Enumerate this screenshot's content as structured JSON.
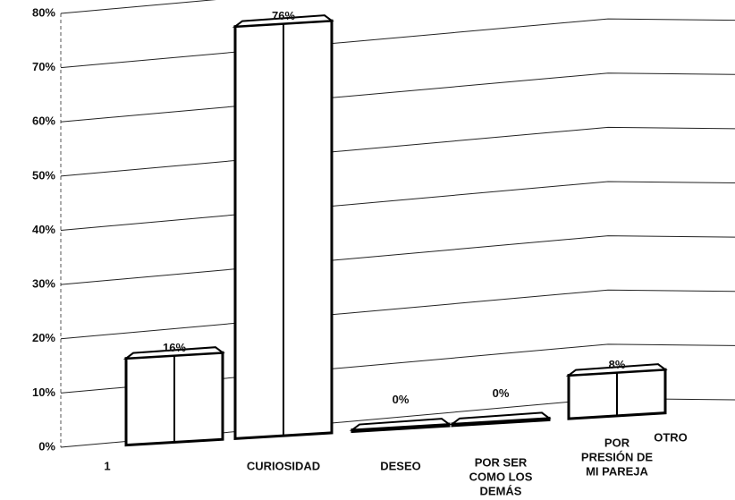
{
  "chart_data": {
    "type": "bar3d",
    "categories": [
      "1",
      "CURIOSIDAD",
      "DESEO",
      [
        "POR SER",
        "COMO LOS",
        "DEMÁS"
      ],
      [
        "POR",
        "PRESIÓN DE",
        "MI PAREJA"
      ],
      "OTRO"
    ],
    "values": [
      16,
      76,
      0,
      0,
      8,
      null
    ],
    "value_labels": [
      "16%",
      "76%",
      "0%",
      "0%",
      "8%",
      null
    ],
    "ylim": [
      0,
      80
    ],
    "yticks": [
      {
        "value": 0,
        "label": "0%"
      },
      {
        "value": 10,
        "label": "10%"
      },
      {
        "value": 20,
        "label": "20%"
      },
      {
        "value": 30,
        "label": "30%"
      },
      {
        "value": 40,
        "label": "40%"
      },
      {
        "value": 50,
        "label": "50%"
      },
      {
        "value": 60,
        "label": "60%"
      },
      {
        "value": 70,
        "label": "70%"
      },
      {
        "value": 80,
        "label": "80%"
      }
    ],
    "grid": true,
    "color": "#ffffff"
  }
}
